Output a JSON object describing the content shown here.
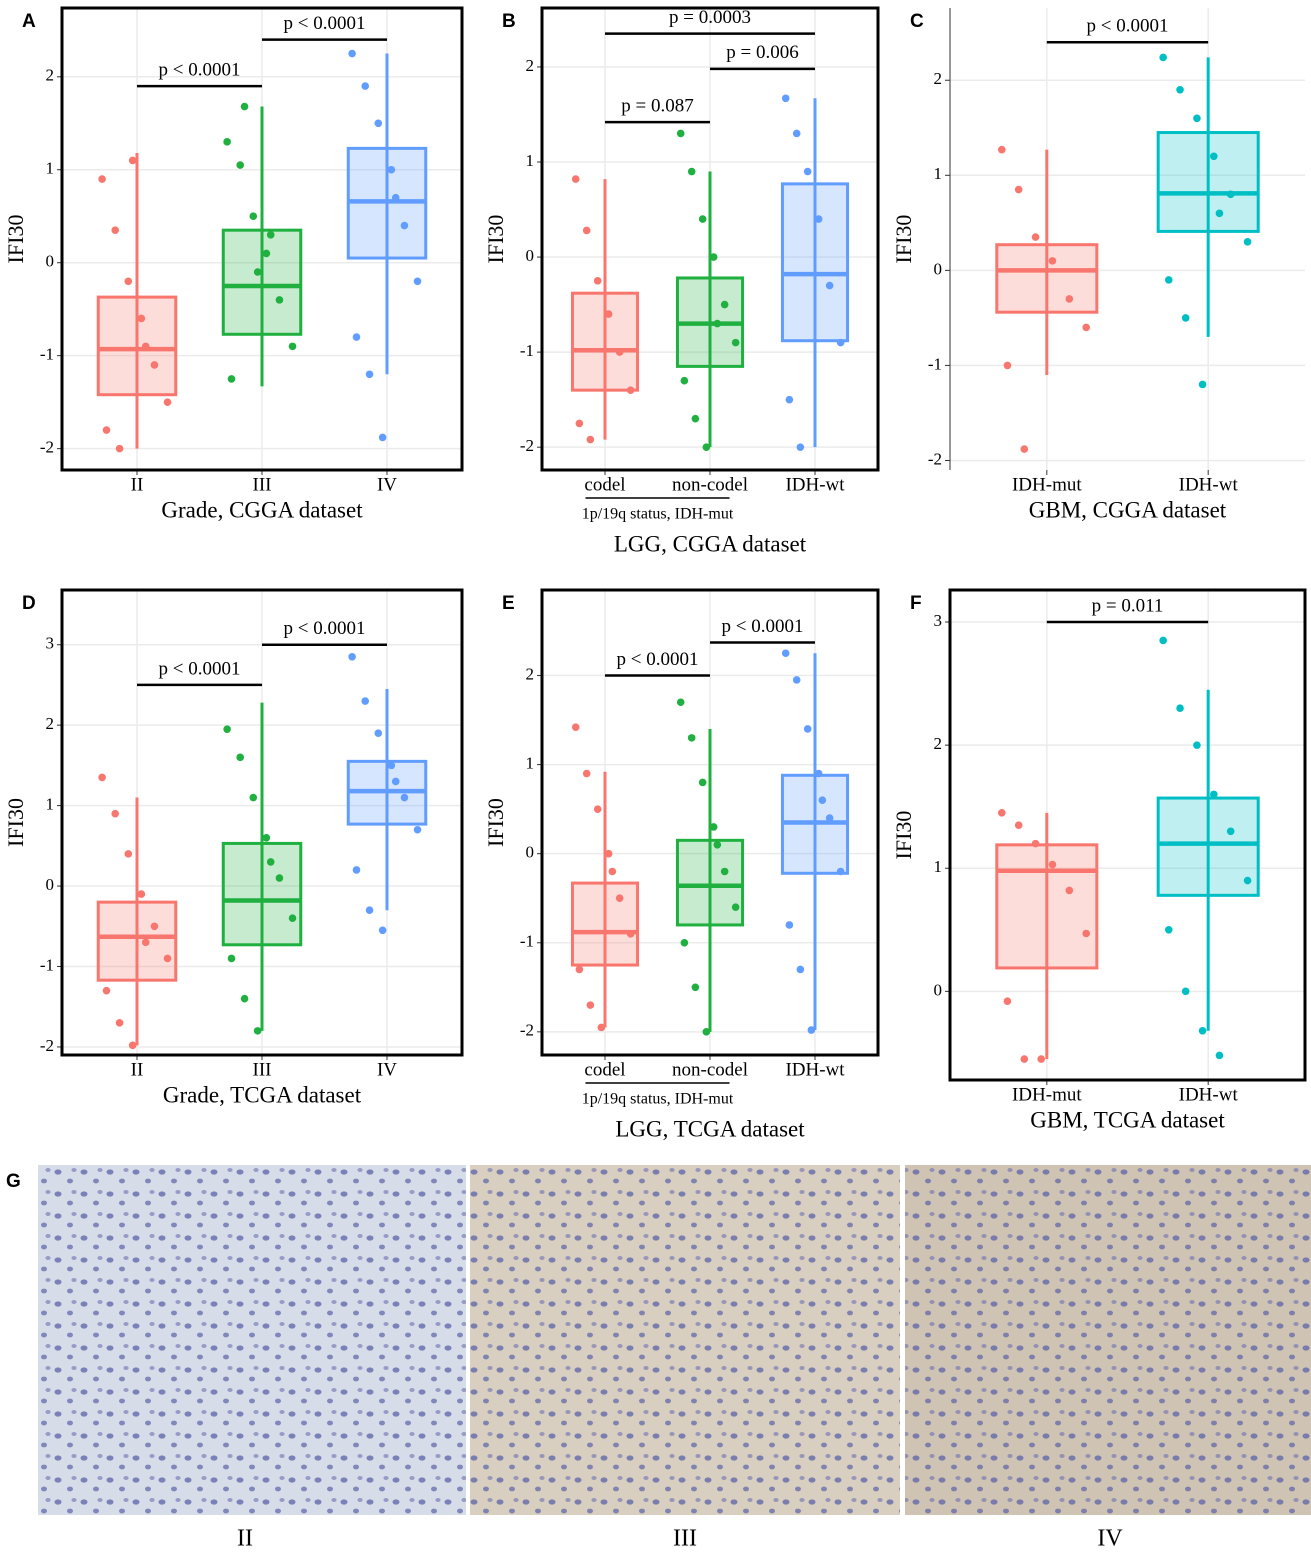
{
  "chart_data": [
    {
      "type": "box",
      "panel": "A",
      "frame": true,
      "y_label": "IFI30",
      "x_label": "Grade, CGGA dataset",
      "categories": [
        "II",
        "III",
        "IV"
      ],
      "colors": [
        "#f8766d",
        "#1fb040",
        "#619cff"
      ],
      "ylim": [
        -2.23,
        2.74
      ],
      "yticks": [
        -2,
        -1,
        0,
        1,
        2
      ],
      "boxes": [
        {
          "q1": -1.42,
          "median": -0.93,
          "q3": -0.37,
          "whisker_low": -2.0,
          "whisker_high": 1.18,
          "points": [
            0.9,
            0.35,
            -0.2,
            -0.6,
            -1.1,
            -1.5,
            -1.8,
            -2.0,
            1.1,
            -0.9
          ]
        },
        {
          "q1": -0.77,
          "median": -0.25,
          "q3": 0.35,
          "whisker_low": -1.33,
          "whisker_high": 1.68,
          "points": [
            1.3,
            1.05,
            0.5,
            0.1,
            -0.4,
            -0.9,
            -1.25,
            1.68,
            -0.1,
            0.3
          ]
        },
        {
          "q1": 0.05,
          "median": 0.66,
          "q3": 1.23,
          "whisker_low": -1.2,
          "whisker_high": 2.25,
          "points": [
            2.25,
            1.9,
            1.5,
            1.0,
            0.4,
            -0.2,
            -0.8,
            -1.2,
            -1.88,
            0.7
          ]
        }
      ],
      "brackets": [
        {
          "between": [
            "II",
            "III"
          ],
          "y": 1.9,
          "label": "p < 0.0001"
        },
        {
          "between": [
            "III",
            "IV"
          ],
          "y": 2.4,
          "label": "p < 0.0001"
        }
      ]
    },
    {
      "type": "box",
      "panel": "B",
      "frame": true,
      "y_label": "IFI30",
      "x_label": "LGG, CGGA dataset",
      "categories": [
        "codel",
        "non-codel",
        "IDH-wt"
      ],
      "colors": [
        "#f8766d",
        "#1fb040",
        "#619cff"
      ],
      "ylim": [
        -2.24,
        2.62
      ],
      "yticks": [
        -2,
        -1,
        0,
        1,
        2
      ],
      "group_label": {
        "text": "1p/19q status, IDH-mut",
        "categories": [
          "codel",
          "non-codel"
        ]
      },
      "boxes": [
        {
          "q1": -1.4,
          "median": -0.98,
          "q3": -0.38,
          "whisker_low": -1.92,
          "whisker_high": 0.82,
          "points": [
            0.82,
            0.28,
            -0.25,
            -0.6,
            -1.0,
            -1.4,
            -1.75,
            -1.92
          ]
        },
        {
          "q1": -1.15,
          "median": -0.7,
          "q3": -0.22,
          "whisker_low": -2.0,
          "whisker_high": 0.9,
          "points": [
            1.3,
            0.9,
            0.4,
            0.0,
            -0.5,
            -0.9,
            -1.3,
            -1.7,
            -2.0,
            -0.7
          ]
        },
        {
          "q1": -0.88,
          "median": -0.18,
          "q3": 0.77,
          "whisker_low": -2.0,
          "whisker_high": 1.67,
          "points": [
            1.67,
            1.3,
            0.9,
            0.4,
            -0.3,
            -0.9,
            -1.5,
            -2.0
          ]
        }
      ],
      "brackets": [
        {
          "between": [
            "codel",
            "non-codel"
          ],
          "y": 1.42,
          "label": "p = 0.087"
        },
        {
          "between": [
            "non-codel",
            "IDH-wt"
          ],
          "y": 1.98,
          "label": "p = 0.006"
        },
        {
          "between": [
            "codel",
            "IDH-wt"
          ],
          "y": 2.35,
          "label": "p = 0.0003"
        }
      ]
    },
    {
      "type": "box",
      "panel": "C",
      "frame": false,
      "y_label": "IFI30",
      "x_label": "GBM, CGGA dataset",
      "categories": [
        "IDH-mut",
        "IDH-wt"
      ],
      "colors": [
        "#f8766d",
        "#00bfc4"
      ],
      "ylim": [
        -2.1,
        2.76
      ],
      "yticks": [
        -2,
        -1,
        0,
        1,
        2
      ],
      "boxes": [
        {
          "q1": -0.44,
          "median": 0.0,
          "q3": 0.27,
          "whisker_low": -1.1,
          "whisker_high": 1.27,
          "points": [
            1.27,
            0.85,
            0.35,
            0.1,
            -0.3,
            -0.6,
            -1.0,
            -1.88
          ]
        },
        {
          "q1": 0.41,
          "median": 0.81,
          "q3": 1.45,
          "whisker_low": -0.7,
          "whisker_high": 2.24,
          "points": [
            2.24,
            1.9,
            1.6,
            1.2,
            0.8,
            0.3,
            -0.1,
            -0.5,
            -1.2,
            0.6
          ]
        }
      ],
      "brackets": [
        {
          "between": [
            "IDH-mut",
            "IDH-wt"
          ],
          "y": 2.4,
          "label": "p < 0.0001"
        }
      ]
    },
    {
      "type": "box",
      "panel": "D",
      "frame": true,
      "y_label": "IFI30",
      "x_label": "Grade, TCGA dataset",
      "categories": [
        "II",
        "III",
        "IV"
      ],
      "colors": [
        "#f8766d",
        "#1fb040",
        "#619cff"
      ],
      "ylim": [
        -2.1,
        3.68
      ],
      "yticks": [
        -2,
        -1,
        0,
        1,
        2,
        3
      ],
      "boxes": [
        {
          "q1": -1.17,
          "median": -0.63,
          "q3": -0.2,
          "whisker_low": -1.98,
          "whisker_high": 1.1,
          "points": [
            1.35,
            0.9,
            0.4,
            -0.1,
            -0.5,
            -0.9,
            -1.3,
            -1.7,
            -1.98,
            -0.7
          ]
        },
        {
          "q1": -0.73,
          "median": -0.18,
          "q3": 0.53,
          "whisker_low": -1.8,
          "whisker_high": 2.28,
          "points": [
            1.95,
            1.6,
            1.1,
            0.6,
            0.1,
            -0.4,
            -0.9,
            -1.4,
            -1.8,
            0.3
          ]
        },
        {
          "q1": 0.77,
          "median": 1.18,
          "q3": 1.55,
          "whisker_low": -0.3,
          "whisker_high": 2.45,
          "points": [
            2.85,
            2.3,
            1.9,
            1.5,
            1.1,
            0.7,
            0.2,
            -0.3,
            -0.55,
            1.3
          ]
        }
      ],
      "brackets": [
        {
          "between": [
            "II",
            "III"
          ],
          "y": 2.5,
          "label": "p < 0.0001"
        },
        {
          "between": [
            "III",
            "IV"
          ],
          "y": 3.0,
          "label": "p < 0.0001"
        }
      ]
    },
    {
      "type": "box",
      "panel": "E",
      "frame": true,
      "y_label": "IFI30",
      "x_label": "LGG, TCGA dataset",
      "categories": [
        "codel",
        "non-codel",
        "IDH-wt"
      ],
      "colors": [
        "#f8766d",
        "#1fb040",
        "#619cff"
      ],
      "ylim": [
        -2.26,
        2.96
      ],
      "yticks": [
        -2,
        -1,
        0,
        1,
        2
      ],
      "group_label": {
        "text": "1p/19q status, IDH-mut",
        "categories": [
          "codel",
          "non-codel"
        ]
      },
      "boxes": [
        {
          "q1": -1.25,
          "median": -0.88,
          "q3": -0.33,
          "whisker_low": -1.95,
          "whisker_high": 0.92,
          "points": [
            1.42,
            0.9,
            0.5,
            0.0,
            -0.5,
            -0.9,
            -1.3,
            -1.7,
            -1.95,
            -0.2
          ]
        },
        {
          "q1": -0.8,
          "median": -0.36,
          "q3": 0.15,
          "whisker_low": -2.0,
          "whisker_high": 1.4,
          "points": [
            1.7,
            1.3,
            0.8,
            0.3,
            -0.2,
            -0.6,
            -1.0,
            -1.5,
            -2.0,
            0.1
          ]
        },
        {
          "q1": -0.22,
          "median": 0.35,
          "q3": 0.88,
          "whisker_low": -1.98,
          "whisker_high": 2.25,
          "points": [
            2.25,
            1.95,
            1.4,
            0.9,
            0.4,
            -0.2,
            -0.8,
            -1.3,
            -1.98,
            0.6
          ]
        }
      ],
      "brackets": [
        {
          "between": [
            "codel",
            "non-codel"
          ],
          "y": 2.0,
          "label": "p < 0.0001"
        },
        {
          "between": [
            "non-codel",
            "IDH-wt"
          ],
          "y": 2.37,
          "label": "p < 0.0001"
        }
      ]
    },
    {
      "type": "box",
      "panel": "F",
      "frame": true,
      "y_label": "IFI30",
      "x_label": "GBM, TCGA dataset",
      "categories": [
        "IDH-mut",
        "IDH-wt"
      ],
      "colors": [
        "#f8766d",
        "#00bfc4"
      ],
      "ylim": [
        -0.72,
        3.26
      ],
      "yticks": [
        0,
        1,
        2,
        3
      ],
      "boxes": [
        {
          "q1": 0.19,
          "median": 0.98,
          "q3": 1.19,
          "whisker_low": -0.55,
          "whisker_high": 1.45,
          "points": [
            1.45,
            1.35,
            1.2,
            1.03,
            0.82,
            0.47,
            -0.08,
            -0.55,
            -0.55
          ]
        },
        {
          "q1": 0.78,
          "median": 1.2,
          "q3": 1.57,
          "whisker_low": -0.32,
          "whisker_high": 2.45,
          "points": [
            2.85,
            2.3,
            2.0,
            1.6,
            1.3,
            0.9,
            0.5,
            0.0,
            -0.32,
            -0.52
          ]
        }
      ],
      "brackets": [
        {
          "between": [
            "IDH-mut",
            "IDH-wt"
          ],
          "y": 3.0,
          "label": "p = 0.011"
        }
      ]
    }
  ],
  "histology": {
    "panel": "G",
    "labels": [
      "II",
      "III",
      "IV"
    ]
  }
}
